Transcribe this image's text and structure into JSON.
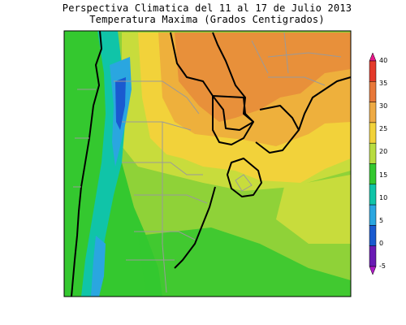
{
  "title_line1": "Perspectiva Climatica del 11 al 17 de Julio 2013",
  "title_line2": "Temperatura Maxima (Grados Centigrados)",
  "colorbar": {
    "levels": [
      "40",
      "35",
      "30",
      "25",
      "20",
      "15",
      "10",
      "5",
      "0",
      "-5"
    ],
    "colors": [
      "#e8178a",
      "#e43a2a",
      "#e8783a",
      "#eeaa44",
      "#f2d23a",
      "#b8dc40",
      "#34c82f",
      "#10c4a8",
      "#2aa6e0",
      "#1a5ad0",
      "#6a1ab4",
      "#b018c8"
    ]
  },
  "legend_colors": {
    "deep_blue": "#1a5ad0",
    "blue": "#2aa6e0",
    "cyan": "#10c4a8",
    "green": "#34c82f",
    "lime": "#8fd238",
    "yellow_green": "#c8dc3c",
    "yellow": "#f2d23a",
    "light_orange": "#eeb03c",
    "orange": "#e8903a"
  }
}
